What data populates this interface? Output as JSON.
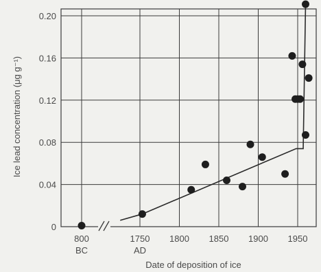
{
  "chart_data": {
    "type": "scatter",
    "xlabel": "Date of deposition of ice",
    "ylabel": "Ice lead concentration (μg g⁻¹)",
    "ylim": [
      0,
      0.22
    ],
    "xlim_main": [
      1720,
      1970
    ],
    "y_ticks": [
      "0",
      "0.04",
      "0.08",
      "0.12",
      "0.16",
      "0.20"
    ],
    "x_ticks": [
      {
        "line1": "800",
        "line2": "BC"
      },
      {
        "line1": "1750",
        "line2": "AD"
      },
      {
        "line1": "1800",
        "line2": ""
      },
      {
        "line1": "1850",
        "line2": ""
      },
      {
        "line1": "1900",
        "line2": ""
      },
      {
        "line1": "1950",
        "line2": ""
      }
    ],
    "grid": true,
    "axis_break": true,
    "break_point": {
      "x": "800 BC",
      "y": 0.001
    },
    "points": [
      {
        "x": 1753,
        "y": 0.012
      },
      {
        "x": 1815,
        "y": 0.035
      },
      {
        "x": 1833,
        "y": 0.059
      },
      {
        "x": 1860,
        "y": 0.044
      },
      {
        "x": 1880,
        "y": 0.038
      },
      {
        "x": 1890,
        "y": 0.078
      },
      {
        "x": 1905,
        "y": 0.066
      },
      {
        "x": 1934,
        "y": 0.05
      },
      {
        "x": 1943,
        "y": 0.162
      },
      {
        "x": 1947,
        "y": 0.121
      },
      {
        "x": 1950,
        "y": 0.121
      },
      {
        "x": 1953,
        "y": 0.121
      },
      {
        "x": 1956,
        "y": 0.154
      },
      {
        "x": 1960,
        "y": 0.211
      },
      {
        "x": 1960,
        "y": 0.087
      },
      {
        "x": 1964,
        "y": 0.141
      }
    ],
    "trend_line": [
      {
        "x": 1725,
        "y": 0.006
      },
      {
        "x": 1753,
        "y": 0.012
      },
      {
        "x": 1948,
        "y": 0.074
      },
      {
        "x": 1957,
        "y": 0.074
      },
      {
        "x": 1960,
        "y": 0.211
      }
    ],
    "colors": {
      "points": "#1e1e1e",
      "line": "#2a2a2a",
      "grid": "#3a3a3a",
      "background": "#f1f1ee"
    }
  }
}
